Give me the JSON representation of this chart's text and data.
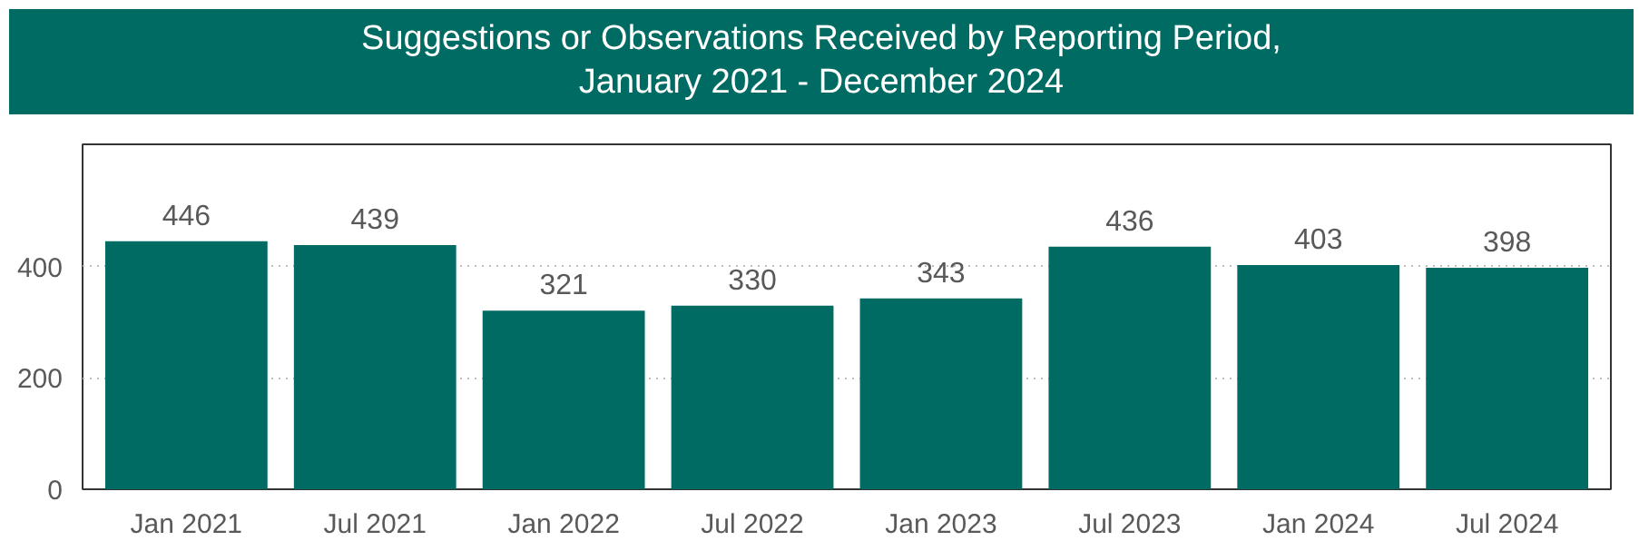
{
  "chart_data": {
    "type": "bar",
    "title": "Suggestions or Observations Received by Reporting Period, January 2021 - December 2024",
    "categories": [
      "Jan 2021",
      "Jul 2021",
      "Jan 2022",
      "Jul 2022",
      "Jan 2023",
      "Jul 2023",
      "Jan 2024",
      "Jul 2024"
    ],
    "values": [
      446,
      439,
      321,
      330,
      343,
      436,
      403,
      398
    ],
    "color": "#006b63",
    "ylim": [
      0,
      620
    ],
    "yticks": [
      0,
      200,
      400
    ],
    "grid": "y",
    "data_labels": true
  }
}
